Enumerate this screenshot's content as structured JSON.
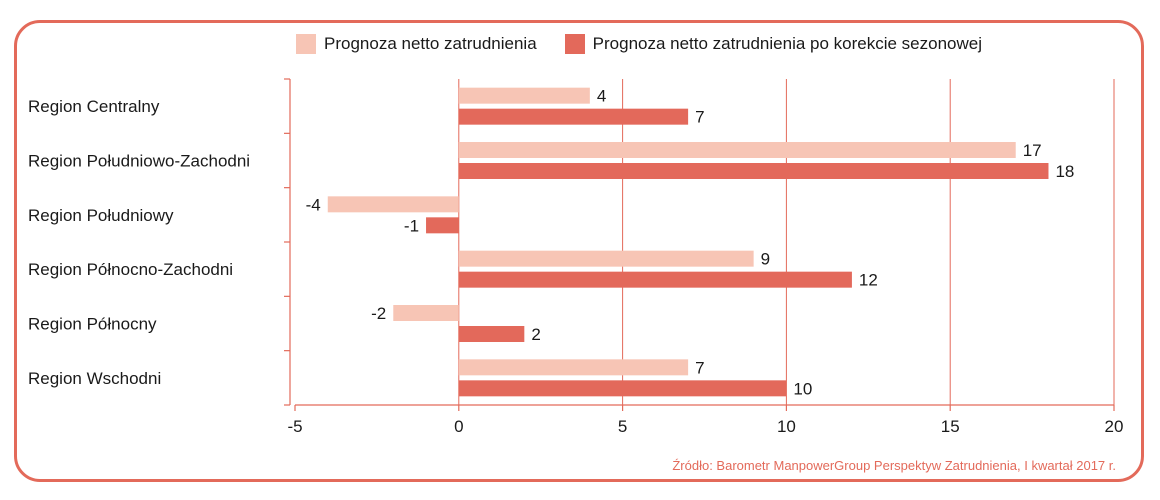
{
  "chart_data": {
    "type": "bar",
    "orientation": "horizontal",
    "categories": [
      "Region Centralny",
      "Region Południowo-Zachodni",
      "Region Południowy",
      "Region Północno-Zachodni",
      "Region Północny",
      "Region Wschodni"
    ],
    "series": [
      {
        "name": "Prognoza netto zatrudnienia",
        "values": [
          4,
          17,
          -4,
          9,
          -2,
          7
        ],
        "color": "#f7c5b5"
      },
      {
        "name": "Prognoza netto zatrudnienia po korekcie sezonowej",
        "values": [
          7,
          18,
          -1,
          12,
          2,
          10
        ],
        "color": "#e3695b"
      }
    ],
    "xlim": [
      -5,
      20
    ],
    "xticks": [
      -5,
      0,
      5,
      10,
      15,
      20
    ],
    "xlabel": "",
    "ylabel": "",
    "legend_position": "top",
    "grid_color": "#e36a5a"
  },
  "legend": {
    "series1": "Prognoza netto zatrudnienia",
    "series2": "Prognoza netto zatrudnienia po korekcie sezonowej"
  },
  "source": "Źródło: Barometr ManpowerGroup Perspektyw Zatrudnienia, I kwartał 2017 r."
}
